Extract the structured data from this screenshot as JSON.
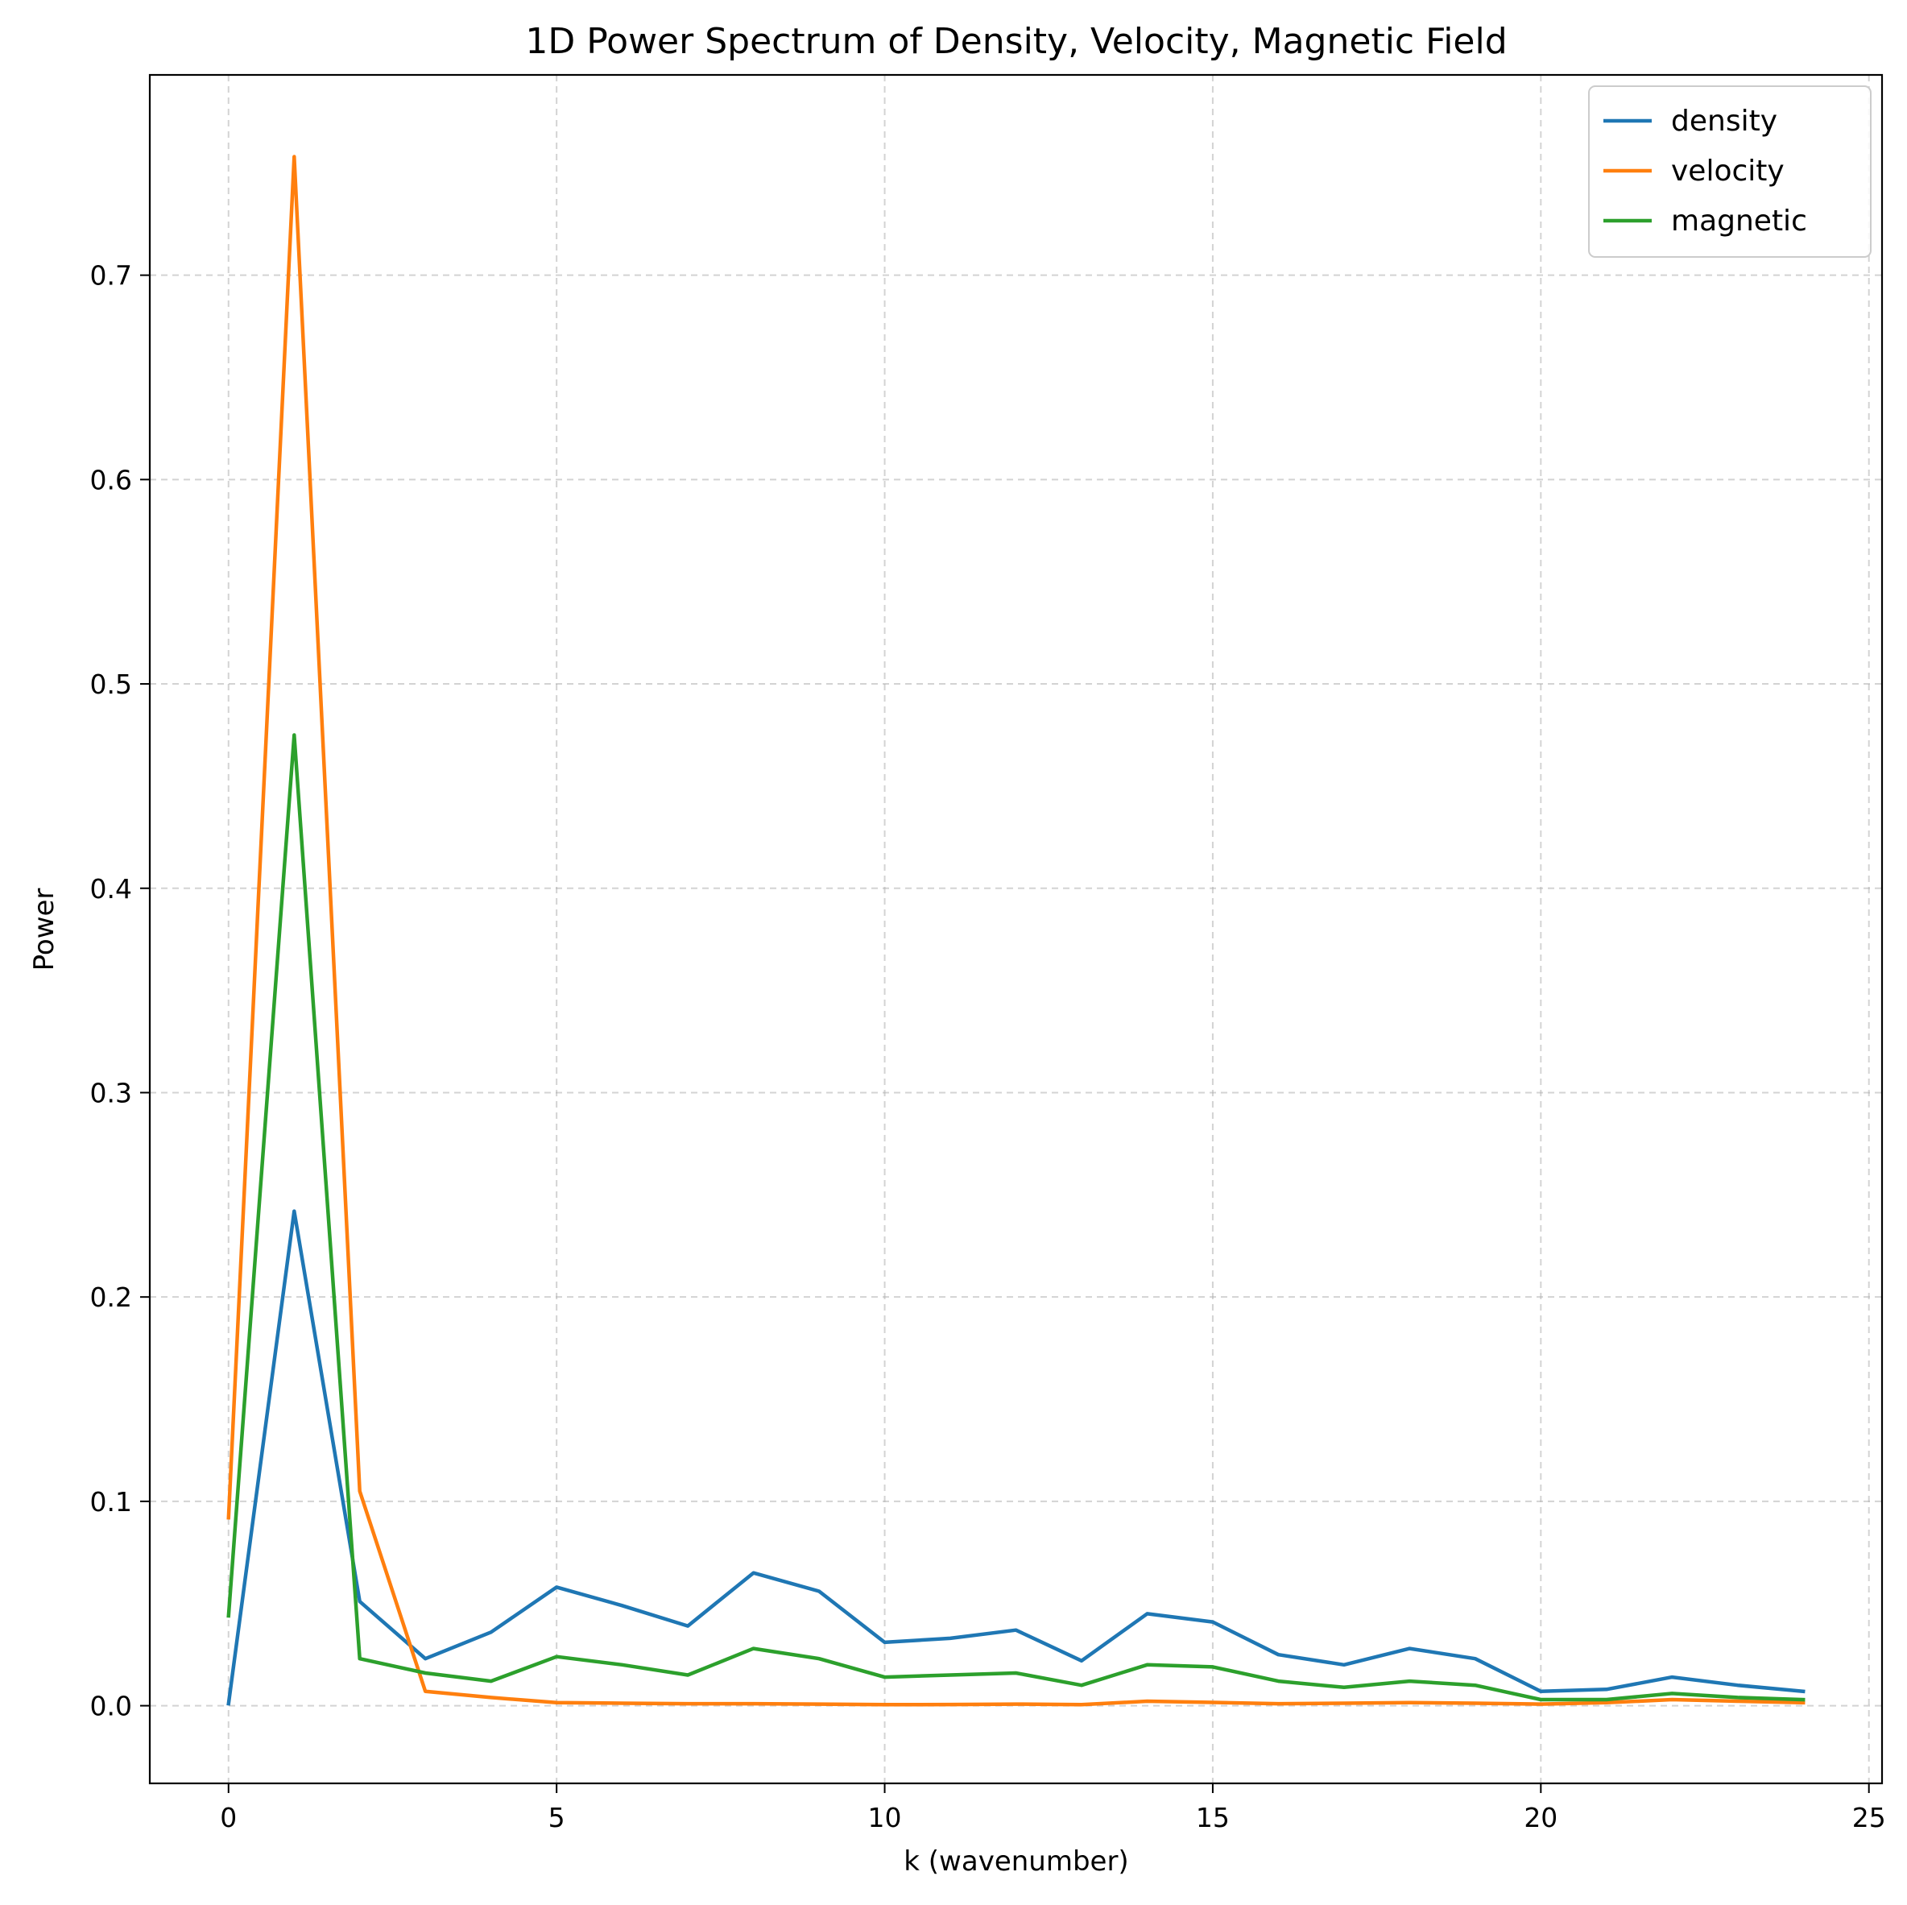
{
  "chart_data": {
    "type": "line",
    "title": "1D Power Spectrum of Density, Velocity, Magnetic Field",
    "xlabel": "k (wavenumber)",
    "ylabel": "Power",
    "xlim": [
      -1.2,
      25.2
    ],
    "ylim": [
      -0.038,
      0.798
    ],
    "xticks": [
      0,
      5,
      10,
      15,
      20,
      25
    ],
    "xtick_labels": [
      "0",
      "5",
      "10",
      "15",
      "20",
      "25"
    ],
    "yticks": [
      0.0,
      0.1,
      0.2,
      0.3,
      0.4,
      0.5,
      0.6,
      0.7
    ],
    "ytick_labels": [
      "0.0",
      "0.1",
      "0.2",
      "0.3",
      "0.4",
      "0.5",
      "0.6",
      "0.7"
    ],
    "grid": true,
    "legend_position": "top-right",
    "x": [
      0,
      1,
      2,
      3,
      4,
      5,
      6,
      7,
      8,
      9,
      10,
      11,
      12,
      13,
      14,
      15,
      16,
      17,
      18,
      19,
      20,
      21,
      22,
      23,
      24
    ],
    "series": [
      {
        "name": "density",
        "color": "#1f77b4",
        "values": [
          0.001,
          0.242,
          0.051,
          0.023,
          0.036,
          0.058,
          0.049,
          0.039,
          0.065,
          0.056,
          0.031,
          0.033,
          0.037,
          0.022,
          0.045,
          0.041,
          0.025,
          0.02,
          0.028,
          0.023,
          0.007,
          0.008,
          0.014,
          0.01,
          0.007
        ]
      },
      {
        "name": "velocity",
        "color": "#ff7f0e",
        "values": [
          0.092,
          0.758,
          0.105,
          0.007,
          0.004,
          0.0015,
          0.0012,
          0.001,
          0.001,
          0.0008,
          0.0005,
          0.0006,
          0.0008,
          0.0005,
          0.0022,
          0.0016,
          0.001,
          0.0012,
          0.0015,
          0.0012,
          0.0008,
          0.0015,
          0.003,
          0.0022,
          0.0015
        ]
      },
      {
        "name": "magnetic",
        "color": "#2ca02c",
        "values": [
          0.044,
          0.475,
          0.023,
          0.016,
          0.012,
          0.024,
          0.02,
          0.015,
          0.028,
          0.023,
          0.014,
          0.015,
          0.016,
          0.01,
          0.02,
          0.019,
          0.012,
          0.009,
          0.012,
          0.01,
          0.003,
          0.003,
          0.006,
          0.004,
          0.003
        ]
      }
    ]
  }
}
